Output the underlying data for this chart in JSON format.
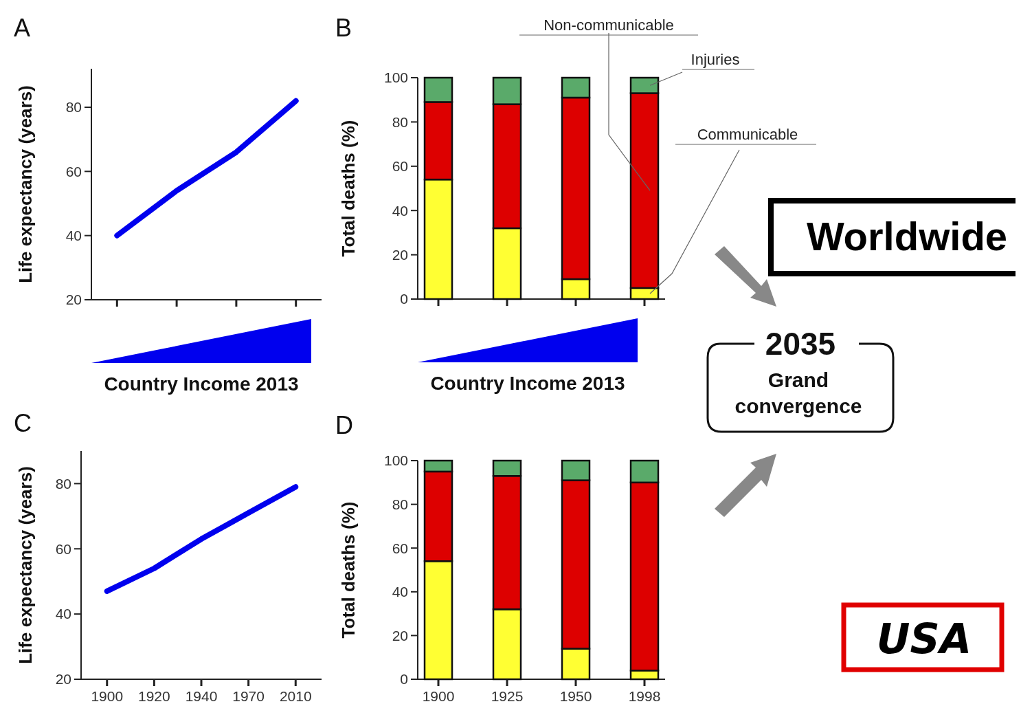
{
  "chart_data": [
    {
      "type": "line",
      "title": "A",
      "ylabel": "Life expectancy (years)",
      "xlabel": "Country Income 2013",
      "categories": [
        null,
        null,
        null,
        null
      ],
      "values": [
        40,
        54,
        66,
        82
      ],
      "color": "#0000ee",
      "ylim": [
        20,
        92
      ],
      "yticks": [
        20,
        40,
        60,
        80
      ],
      "tick_labels": "y"
    },
    {
      "type": "bar",
      "stacked": true,
      "title": "B",
      "ylabel": "Total deaths  (%)",
      "xlabel": "Country Income 2013",
      "categories": [
        null,
        null,
        null,
        null
      ],
      "ylim": [
        0,
        100
      ],
      "yticks": [
        0,
        20,
        40,
        60,
        80,
        100
      ],
      "tick_labels": "y",
      "series": [
        {
          "name": "Communicable",
          "color": "#ffff33",
          "values": [
            54,
            32,
            9,
            5
          ]
        },
        {
          "name": "Non-communicable",
          "color": "#dd0000",
          "values": [
            35,
            56,
            82,
            88
          ]
        },
        {
          "name": "Injuries",
          "color": "#5aaa6a",
          "values": [
            11,
            12,
            9,
            7
          ]
        }
      ]
    },
    {
      "type": "line",
      "title": "C",
      "ylabel": "Life expectancy (years)",
      "categories": [
        "1900",
        "1920",
        "1940",
        "1970",
        "2010"
      ],
      "values": [
        47,
        54,
        63,
        71,
        79
      ],
      "color": "#0000ee",
      "ylim": [
        20,
        90
      ],
      "yticks": [
        20,
        40,
        60,
        80
      ]
    },
    {
      "type": "bar",
      "stacked": true,
      "title": "D",
      "ylabel": "Total deaths  (%)",
      "categories": [
        "1900",
        "1925",
        "1950",
        "1998"
      ],
      "ylim": [
        0,
        100
      ],
      "yticks": [
        0,
        20,
        40,
        60,
        80,
        100
      ],
      "series": [
        {
          "color": "#ffff33",
          "values": [
            54,
            32,
            14,
            4
          ]
        },
        {
          "color": "#dd0000",
          "values": [
            41,
            61,
            77,
            86
          ]
        },
        {
          "color": "#5aaa6a",
          "values": [
            5,
            7,
            9,
            10
          ]
        }
      ]
    },
    {
      "type": "other",
      "annotations": [
        "Worldwide",
        "2035",
        "Grand convergence",
        "USA"
      ]
    }
  ]
}
